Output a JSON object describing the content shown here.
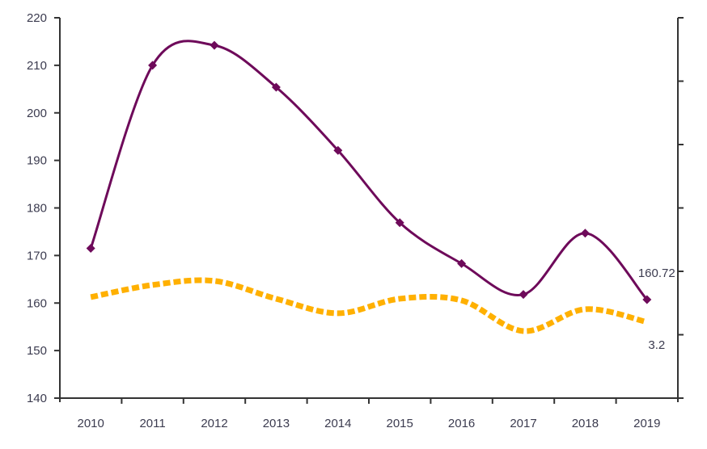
{
  "chart_data": {
    "type": "line",
    "title": "",
    "xlabel": "",
    "ylabel": "",
    "categories": [
      "2010",
      "2011",
      "2012",
      "2013",
      "2014",
      "2015",
      "2016",
      "2017",
      "2018",
      "2019"
    ],
    "ylim": [
      140,
      220
    ],
    "y_ticks": [
      "140",
      "150",
      "160",
      "170",
      "180",
      "190",
      "200",
      "210",
      "220"
    ],
    "y2lim": [
      0,
      16
    ],
    "y2_tick_count": 7,
    "grid": false,
    "legend": "none",
    "series": [
      {
        "name": "series-1",
        "axis": "left",
        "color": "#6e0a5a",
        "style": "solid-with-diamond-markers",
        "values": [
          171.5,
          210.0,
          214.2,
          205.4,
          192.1,
          176.9,
          168.3,
          161.8,
          174.7,
          160.72
        ],
        "end_label": "160.72"
      },
      {
        "name": "series-2",
        "axis": "right",
        "color": "#ffb000",
        "style": "dashed",
        "values": [
          4.25,
          4.76,
          4.93,
          4.18,
          3.57,
          4.18,
          4.11,
          2.82,
          3.74,
          3.2
        ],
        "end_label": "3.2"
      }
    ]
  }
}
